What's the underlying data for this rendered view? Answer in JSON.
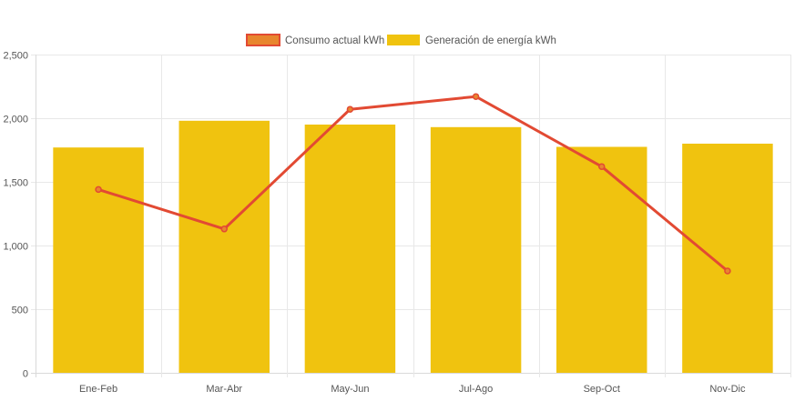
{
  "chart_data": {
    "type": "bar",
    "categories": [
      "Ene-Feb",
      "Mar-Abr",
      "May-Jun",
      "Jul-Ago",
      "Sep-Oct",
      "Nov-Dic"
    ],
    "series": [
      {
        "name": "Consumo actual kWh",
        "type": "line",
        "values": [
          1440,
          1130,
          2070,
          2170,
          1620,
          800
        ],
        "color": "#e24a33",
        "legend_fill": "#e8862e"
      },
      {
        "name": "Generación de energía kWh",
        "type": "bar",
        "values": [
          1770,
          1980,
          1950,
          1930,
          1775,
          1800
        ],
        "color": "#f0c30f"
      }
    ],
    "ylim": [
      0,
      2500
    ],
    "yticks": [
      0,
      500,
      1000,
      1500,
      2000,
      2500
    ],
    "ytick_labels": [
      "0",
      "500",
      "1,000",
      "1,500",
      "2,000",
      "2,500"
    ],
    "grid": true,
    "legend_position": "top-center",
    "title": "",
    "xlabel": "",
    "ylabel": ""
  }
}
